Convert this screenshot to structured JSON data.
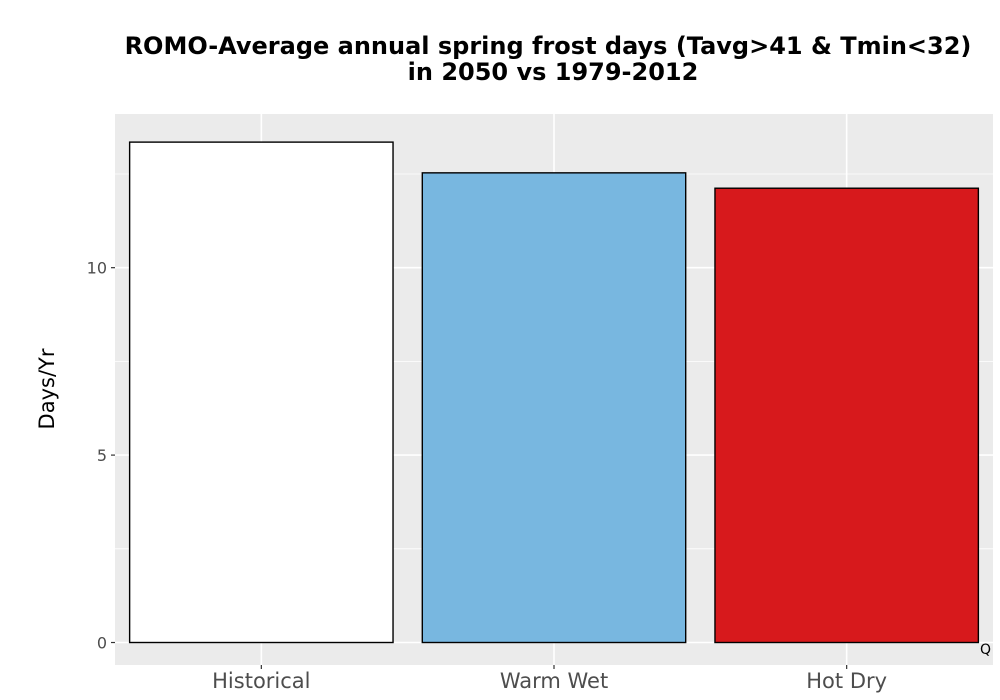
{
  "chart_data": {
    "type": "bar",
    "title_lines": [
      "ROMO-Average annual spring frost days (Tavg>41 & Tmin<32)",
      "in 2050 vs 1979-2012"
    ],
    "xlabel": "",
    "ylabel": "Days/Yr",
    "categories": [
      "Historical",
      "Warm Wet",
      "Hot Dry"
    ],
    "values": [
      13.35,
      12.53,
      12.12
    ],
    "bar_colors": [
      "#ffffff",
      "#78b7e0",
      "#d7191c"
    ],
    "bar_outline_color": "#000000",
    "ylim": [
      -0.6,
      14.1
    ],
    "yticks": [
      0,
      5,
      10
    ],
    "grid": true,
    "panel_background": "#ebebeb",
    "grid_color": "#ffffff",
    "corner_label": "Q"
  }
}
